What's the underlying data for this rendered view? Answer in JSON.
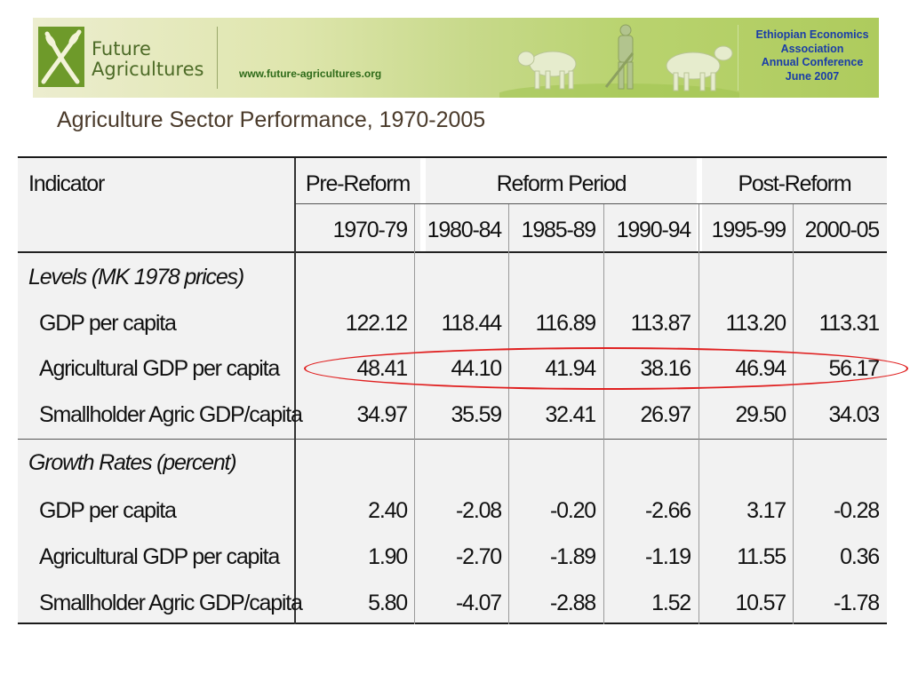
{
  "banner": {
    "logo_line1": "Future",
    "logo_line2": "Agricultures",
    "website": "www.future-agricultures.org",
    "conference_lines": [
      "Ethiopian Economics",
      "Association",
      "Annual Conference",
      "June 2007"
    ]
  },
  "title": "Agriculture Sector Performance, 1970-2005",
  "table": {
    "header": {
      "indicator": "Indicator",
      "groups": [
        "Pre-Reform",
        "Reform Period",
        "Post-Reform"
      ],
      "periods": [
        "1970-79",
        "1980-84",
        "1985-89",
        "1990-94",
        "1995-99",
        "2000-05"
      ]
    },
    "sections": [
      {
        "title": "Levels (MK 1978 prices)",
        "rows": [
          {
            "label": "GDP per capita",
            "values": [
              "122.12",
              "118.44",
              "116.89",
              "113.87",
              "113.20",
              "113.31"
            ]
          },
          {
            "label": "Agricultural GDP per capita",
            "values": [
              "48.41",
              "44.10",
              "41.94",
              "38.16",
              "46.94",
              "56.17"
            ]
          },
          {
            "label": "Smallholder Agric GDP/capita",
            "values": [
              "34.97",
              "35.59",
              "32.41",
              "26.97",
              "29.50",
              "34.03"
            ]
          }
        ]
      },
      {
        "title": "Growth Rates (percent)",
        "rows": [
          {
            "label": "GDP per capita",
            "values": [
              "2.40",
              "-2.08",
              "-0.20",
              "-2.66",
              "3.17",
              "-0.28"
            ]
          },
          {
            "label": "Agricultural GDP per capita",
            "values": [
              "1.90",
              "-2.70",
              "-1.89",
              "-1.19",
              "11.55",
              "0.36"
            ]
          },
          {
            "label": "Smallholder Agric GDP/capita",
            "values": [
              "5.80",
              "-4.07",
              "-2.88",
              "1.52",
              "10.57",
              "-1.78"
            ]
          }
        ]
      }
    ]
  },
  "colors": {
    "logo_green": "#4d6b27",
    "website_green": "#2f6b1a",
    "conference_blue": "#1a3da8",
    "title_brown": "#4a3a2a",
    "highlight_red": "#e02020",
    "table_bg": "#f2f2f2"
  }
}
